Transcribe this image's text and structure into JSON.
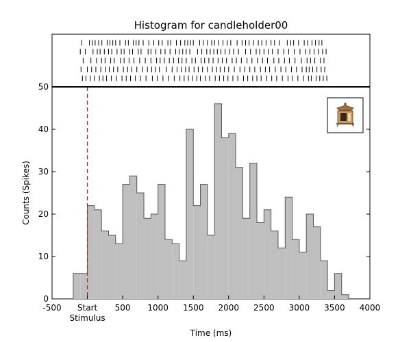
{
  "chart_data": {
    "type": "bar",
    "title": "Histogram for candleholder00",
    "xlabel": "Time (ms)",
    "ylabel": "Counts (Spikes)",
    "xlim": [
      -500,
      4000
    ],
    "ylim": [
      0,
      50
    ],
    "x_ticks": [
      -500,
      0,
      500,
      1000,
      1500,
      2000,
      2500,
      3000,
      3500,
      4000
    ],
    "x_tick_labels": [
      "-500",
      "Start",
      "500",
      "1000",
      "1500",
      "2000",
      "2500",
      "3000",
      "3500",
      "4000"
    ],
    "x_tick_sublabel": "Stimulus",
    "y_ticks": [
      0,
      10,
      20,
      30,
      40,
      50
    ],
    "bin_width": 100,
    "bin_starts": [
      -200,
      -100,
      0,
      100,
      200,
      300,
      400,
      500,
      600,
      700,
      800,
      900,
      1000,
      1100,
      1200,
      1300,
      1400,
      1500,
      1600,
      1700,
      1800,
      1900,
      2000,
      2100,
      2200,
      2300,
      2400,
      2500,
      2600,
      2700,
      2800,
      2900,
      3000,
      3100,
      3200,
      3300,
      3400,
      3500,
      3600
    ],
    "values": [
      6,
      6,
      22,
      21,
      16,
      15,
      13,
      27,
      29,
      25,
      19,
      20,
      27,
      14,
      13,
      9,
      40,
      22,
      27,
      15,
      46,
      38,
      39,
      31,
      19,
      32,
      18,
      21,
      16,
      12,
      24,
      14,
      11,
      20,
      17,
      9,
      2,
      6,
      1
    ],
    "stimulus_line_x": 0,
    "stimulus_line_color": "#ff0000",
    "bar_fill_color": "#bfbfbf",
    "bar_edge_color": "#555555",
    "grid": false,
    "raster": {
      "trial_count": 5,
      "tick_color": "#000000",
      "trials": [
        [
          -80,
          30,
          70,
          110,
          160,
          205,
          280,
          320,
          360,
          400,
          460,
          540,
          580,
          650,
          690,
          730,
          790,
          870,
          940,
          1010,
          1060,
          1140,
          1180,
          1260,
          1320,
          1380,
          1420,
          1460,
          1500,
          1590,
          1640,
          1700,
          1760,
          1800,
          1860,
          1920,
          1980,
          2030,
          2120,
          2190,
          2240,
          2290,
          2350,
          2420,
          2470,
          2530,
          2600,
          2650,
          2720,
          2830,
          2880,
          2920,
          2990,
          3070,
          3120,
          3180,
          3230,
          3280,
          3320
        ],
        [
          -100,
          -30,
          80,
          140,
          180,
          240,
          300,
          345,
          420,
          480,
          520,
          600,
          640,
          720,
          760,
          860,
          900,
          970,
          1040,
          1100,
          1170,
          1250,
          1300,
          1350,
          1400,
          1450,
          1560,
          1620,
          1690,
          1740,
          1790,
          1840,
          1890,
          1950,
          2010,
          2070,
          2140,
          2240,
          2310,
          2390,
          2440,
          2500,
          2560,
          2620,
          2700,
          2780,
          2850,
          2930,
          3010,
          3090,
          3150,
          3210,
          3270,
          3330,
          3380
        ],
        [
          -60,
          50,
          130,
          200,
          250,
          330,
          380,
          470,
          520,
          590,
          660,
          740,
          820,
          900,
          980,
          1030,
          1090,
          1160,
          1220,
          1290,
          1340,
          1400,
          1480,
          1530,
          1610,
          1660,
          1720,
          1780,
          1850,
          1910,
          1970,
          2050,
          2110,
          2180,
          2260,
          2330,
          2410,
          2480,
          2550,
          2640,
          2710,
          2790,
          2860,
          2940,
          3030,
          3110,
          3160,
          3220,
          3300,
          3350
        ],
        [
          -90,
          0,
          60,
          120,
          190,
          260,
          310,
          370,
          430,
          510,
          570,
          630,
          700,
          780,
          850,
          910,
          960,
          1020,
          1120,
          1200,
          1270,
          1330,
          1390,
          1440,
          1510,
          1570,
          1630,
          1700,
          1770,
          1830,
          1880,
          1940,
          2000,
          2080,
          2160,
          2230,
          2300,
          2370,
          2450,
          2520,
          2580,
          2660,
          2740,
          2810,
          2890,
          2960,
          3040,
          3100,
          3140,
          3190,
          3250,
          3310,
          3360
        ],
        [
          -70,
          -20,
          40,
          100,
          170,
          220,
          270,
          340,
          410,
          490,
          550,
          610,
          680,
          750,
          830,
          920,
          990,
          1070,
          1150,
          1230,
          1310,
          1370,
          1430,
          1490,
          1550,
          1600,
          1670,
          1730,
          1810,
          1870,
          1930,
          1990,
          2060,
          2130,
          2210,
          2270,
          2340,
          2400,
          2460,
          2540,
          2610,
          2680,
          2760,
          2840,
          2900,
          2980,
          3060,
          3130,
          3170,
          3240,
          3290,
          3340,
          3390
        ]
      ]
    }
  }
}
